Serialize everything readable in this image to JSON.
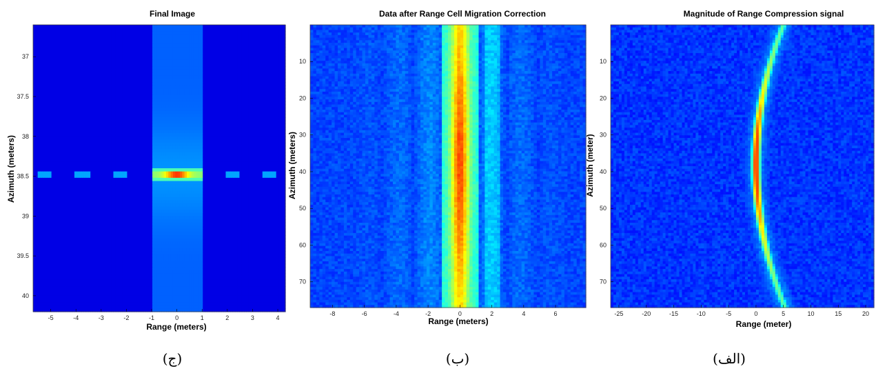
{
  "figure": {
    "captions": {
      "left": "(ج)",
      "middle": "(ب)",
      "right": "(الف)"
    }
  },
  "colormap": {
    "name": "jet",
    "stops": [
      "#00007f",
      "#0000ff",
      "#007fff",
      "#00ffff",
      "#7fff7f",
      "#ffff00",
      "#ff7f00",
      "#ff0000",
      "#7f0000"
    ]
  },
  "chart_data": [
    {
      "type": "heatmap",
      "title": "Final Image",
      "xlabel": "Range (meters)",
      "ylabel": "Azimuth (meters)",
      "xlim": [
        -5.7,
        4.3
      ],
      "ylim": [
        36.6,
        40.2
      ],
      "y_reversed": true,
      "xticks": [
        -5,
        -4,
        -3,
        -2,
        -1,
        0,
        1,
        2,
        3,
        4
      ],
      "yticks": [
        37,
        37.5,
        38,
        38.5,
        39,
        39.5,
        40
      ],
      "ytick_labels": [
        "37",
        "37.5",
        "38",
        "38.5",
        "39",
        "39.5",
        "40"
      ],
      "background_level": 0.1,
      "peak": {
        "x": 0,
        "y": 38.48
      },
      "main_lobe_x": [
        -1.0,
        1.05
      ],
      "sidelobes_x": [
        -5.5,
        -4.0,
        -2.5,
        1.95,
        3.45
      ],
      "sidelobe_level": 0.35,
      "grid": false
    },
    {
      "type": "heatmap",
      "title": "Data after Range Cell Migration Correction",
      "xlabel": "Range (meters)",
      "ylabel": "Azimuth (meters)",
      "xlim": [
        -9.4,
        7.9
      ],
      "ylim": [
        0,
        77
      ],
      "y_reversed": true,
      "xticks": [
        -8,
        -6,
        -4,
        -2,
        0,
        2,
        4,
        6
      ],
      "yticks": [
        10,
        20,
        30,
        40,
        50,
        60,
        70
      ],
      "ytick_labels": [
        "10",
        "20",
        "30",
        "40",
        "50",
        "60",
        "70"
      ],
      "center_band_x": [
        -1.1,
        1.1
      ],
      "center_peak_level": 0.78,
      "grid": false
    },
    {
      "type": "heatmap",
      "title": "Magnitude of Range Compression signal",
      "xlabel": "Range (meter)",
      "ylabel": "Azimuth (meter)",
      "xlim": [
        -26.5,
        21.5
      ],
      "ylim": [
        0,
        77
      ],
      "y_reversed": true,
      "xticks": [
        -25,
        -20,
        -15,
        -10,
        -5,
        0,
        5,
        10,
        15,
        20
      ],
      "yticks": [
        10,
        20,
        30,
        40,
        50,
        60,
        70
      ],
      "ytick_labels": [
        "10",
        "20",
        "30",
        "40",
        "50",
        "60",
        "70"
      ],
      "curve_center_range": 0,
      "curve_edge_range": 5,
      "curve_center_azimuth": 38,
      "peak_level": 0.85,
      "grid": false
    }
  ]
}
